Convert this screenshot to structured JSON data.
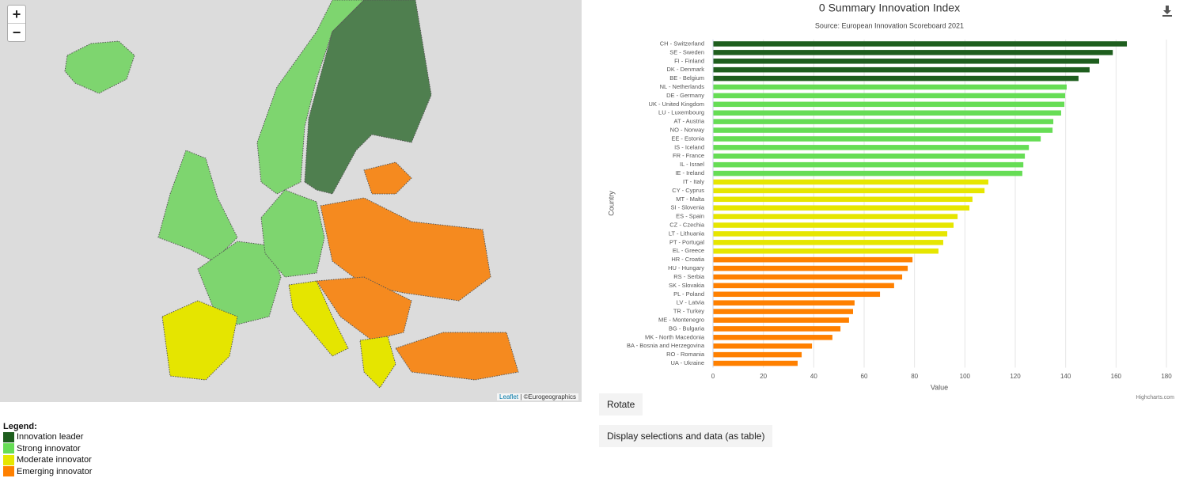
{
  "map": {
    "zoom_in": "+",
    "zoom_out": "−",
    "attribution_link": "Leaflet",
    "attribution_rest": "| ©Eurogeographics"
  },
  "legend": {
    "title": "Legend:",
    "items": [
      {
        "label": "Innovation leader",
        "color": "#1e5e1e"
      },
      {
        "label": "Strong innovator",
        "color": "#66dd55"
      },
      {
        "label": "Moderate innovator",
        "color": "#e6e600"
      },
      {
        "label": "Emerging innovator",
        "color": "#ff8000"
      }
    ]
  },
  "buttons": [
    "Rotate",
    "Display selections and data (as table)"
  ],
  "chart_data": {
    "type": "bar",
    "orientation": "horizontal",
    "title": "0 Summary Innovation Index",
    "subtitle": "Source: European Innovation Scoreboard 2021",
    "x_axis_label": "Country",
    "y_axis_label": "Value",
    "credits": "Highcharts.com",
    "categories": [
      "CH - Switzerland",
      "SE - Sweden",
      "FI - Finland",
      "DK - Denmark",
      "BE - Belgium",
      "NL - Netherlands",
      "DE - Germany",
      "UK - United Kingdom",
      "LU - Luxembourg",
      "AT - Austria",
      "NO - Norway",
      "EE - Estonia",
      "IS - Iceland",
      "FR - France",
      "IL - Israel",
      "IE - Ireland",
      "IT - Italy",
      "CY - Cyprus",
      "MT - Malta",
      "SI - Slovenia",
      "ES - Spain",
      "CZ - Czechia",
      "LT - Lithuania",
      "PT - Portugal",
      "EL - Greece",
      "HR - Croatia",
      "HU - Hungary",
      "RS - Serbia",
      "SK - Slovakia",
      "PL - Poland",
      "LV - Latvia",
      "TR - Turkey",
      "ME - Montenegro",
      "BG - Bulgaria",
      "MK - North Macedonia",
      "BA - Bosnia and Herzegovina",
      "RO - Romania",
      "UA - Ukraine"
    ],
    "values": [
      164.3,
      158.7,
      153.3,
      149.5,
      145.1,
      140.4,
      139.8,
      139.5,
      138.2,
      135.1,
      134.8,
      130.1,
      125.4,
      123.8,
      123.2,
      122.8,
      109.3,
      107.8,
      103,
      101.8,
      97.1,
      95.5,
      93,
      91.4,
      89.5,
      79.2,
      77.3,
      75.1,
      71.9,
      66.3,
      56.2,
      55.6,
      54,
      50.6,
      47.4,
      39.3,
      35.2,
      33.6
    ],
    "colors": [
      "#1e5e1e",
      "#1e5e1e",
      "#1e5e1e",
      "#1e5e1e",
      "#1e5e1e",
      "#66dd55",
      "#66dd55",
      "#66dd55",
      "#66dd55",
      "#66dd55",
      "#66dd55",
      "#66dd55",
      "#66dd55",
      "#66dd55",
      "#66dd55",
      "#66dd55",
      "#e6e600",
      "#e6e600",
      "#e6e600",
      "#e6e600",
      "#e6e600",
      "#e6e600",
      "#e6e600",
      "#e6e600",
      "#e6e600",
      "#ff8000",
      "#ff8000",
      "#ff8000",
      "#ff8000",
      "#ff8000",
      "#ff8000",
      "#ff8000",
      "#ff8000",
      "#ff8000",
      "#ff8000",
      "#ff8000",
      "#ff8000",
      "#ff8000"
    ],
    "ylim": [
      0,
      180
    ],
    "yticks": [
      0,
      20,
      40,
      60,
      80,
      100,
      120,
      140,
      160,
      180
    ],
    "grid": true
  }
}
